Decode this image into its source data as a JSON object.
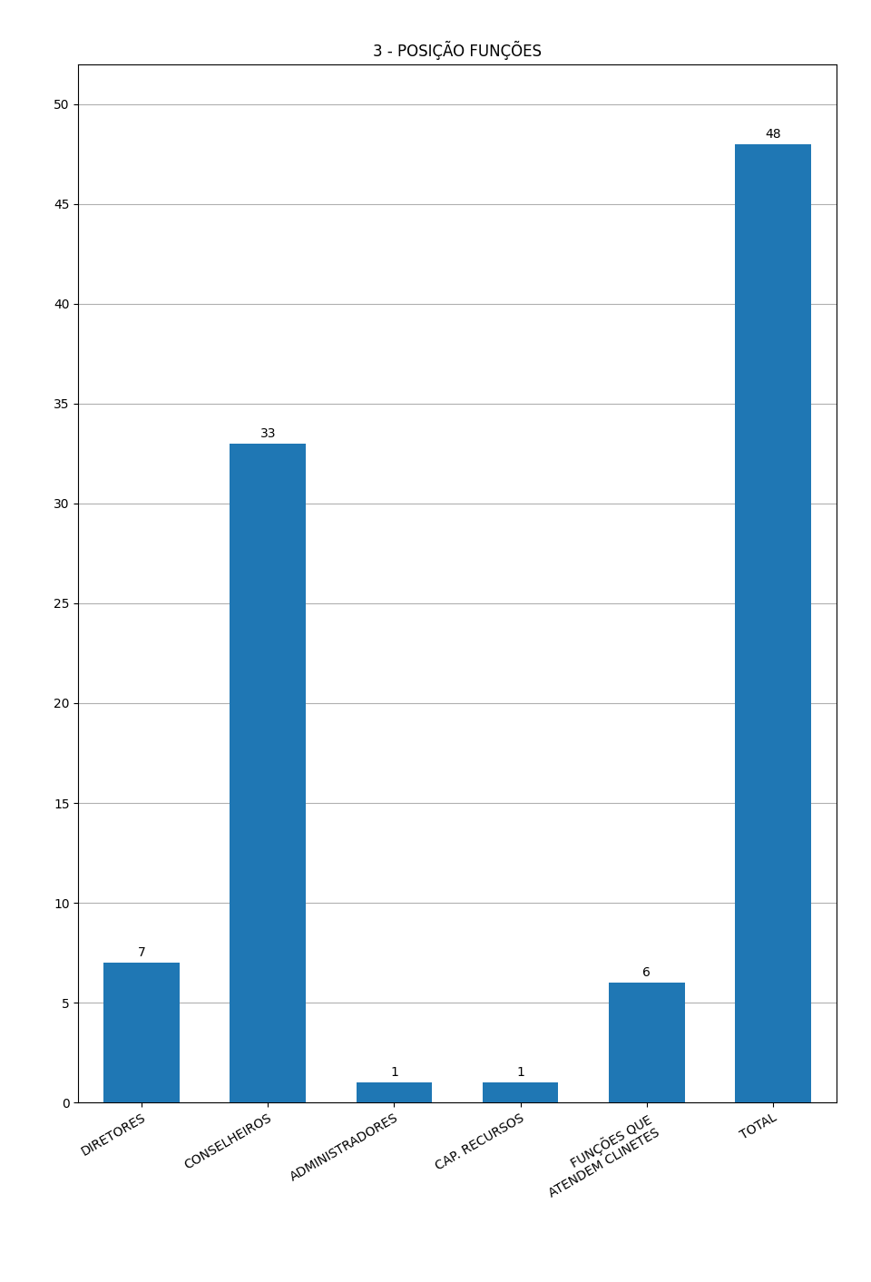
{
  "chart_data": {
    "type": "bar",
    "title": "3 - POSIÇÃO FUNÇÕES",
    "categories": [
      "DIRETORES",
      "CONSELHEIROS",
      "ADMINISTRADORES",
      "CAP. RECURSOS",
      "FUNÇÕES QUE\nATENDEM CLINETES",
      "TOTAL"
    ],
    "values": [
      7,
      33,
      1,
      1,
      6,
      48
    ],
    "ylim": [
      0,
      52
    ],
    "yticks": [
      0,
      5,
      10,
      15,
      20,
      25,
      30,
      35,
      40,
      45,
      50
    ],
    "grid": true,
    "data_labels": true
  }
}
